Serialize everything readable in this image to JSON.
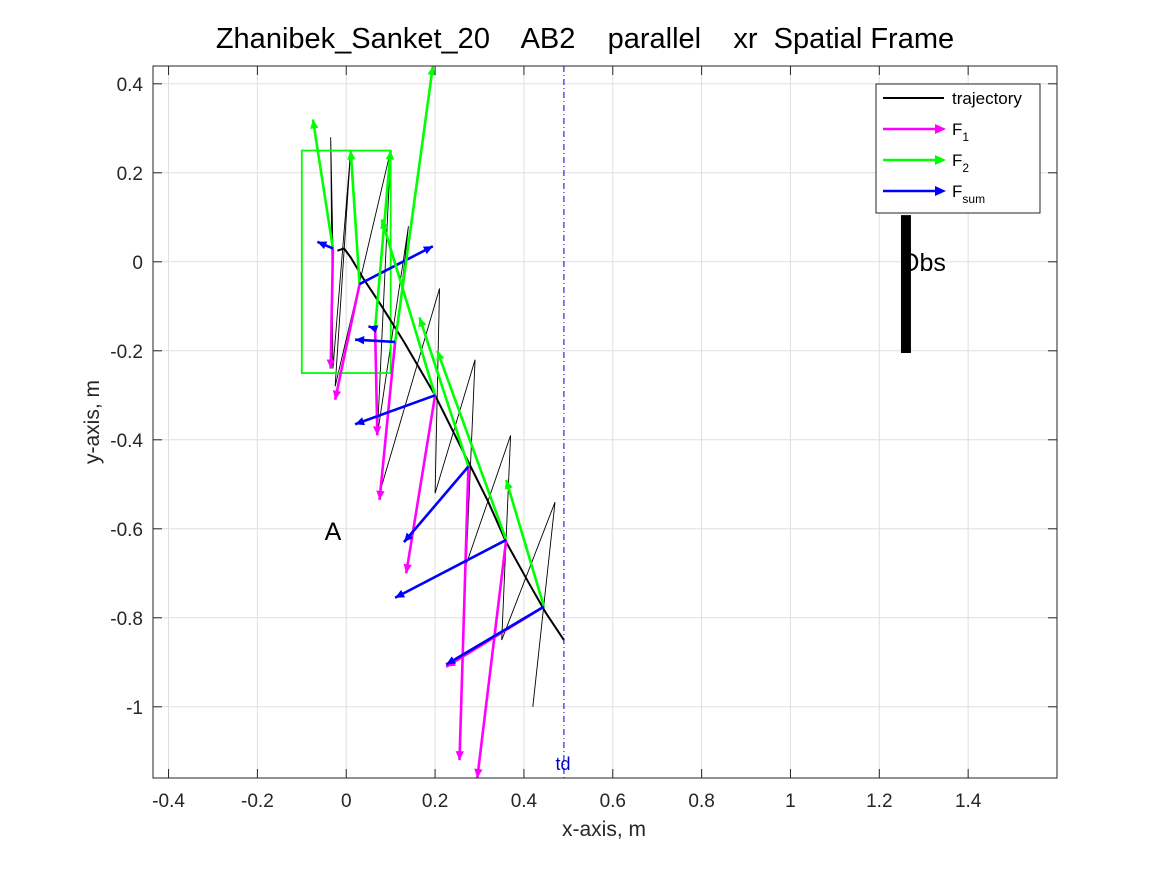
{
  "chart_data": {
    "type": "line",
    "title": "Zhanibek_Sanket_20    AB2    parallel    xr  Spatial Frame",
    "xlabel": "x-axis, m",
    "ylabel": "y-axis, m",
    "xlim": [
      -0.435,
      1.6
    ],
    "ylim": [
      -1.16,
      0.44
    ],
    "x_ticks": [
      -0.4,
      -0.2,
      0,
      0.2,
      0.4,
      0.6,
      0.8,
      1,
      1.2,
      1.4
    ],
    "x_tick_labels": [
      "-0.4",
      "-0.2",
      "0",
      "0.2",
      "0.4",
      "0.6",
      "0.8",
      "1",
      "1.2",
      "1.4"
    ],
    "y_ticks": [
      0.4,
      0.2,
      0,
      -0.2,
      -0.4,
      -0.6,
      -0.8,
      -1
    ],
    "y_tick_labels": [
      "0.4",
      "0.2",
      "0",
      "-0.2",
      "-0.4",
      "-0.6",
      "-0.8",
      "-1"
    ],
    "grid": true,
    "legend_position": "top-right",
    "legend": [
      {
        "key": "trajectory",
        "label": "trajectory",
        "sub": "",
        "color": "#000000"
      },
      {
        "key": "f1",
        "label": "F",
        "sub": "1",
        "color": "#ff00ff"
      },
      {
        "key": "f2",
        "label": "F",
        "sub": "2",
        "color": "#00ff00"
      },
      {
        "key": "fsum",
        "label": "F",
        "sub": "sum",
        "color": "#0000ff"
      }
    ],
    "trajectory": {
      "x": [
        -0.02,
        -0.005,
        0.01,
        0.04,
        0.08,
        0.13,
        0.2,
        0.24,
        0.28,
        0.32,
        0.36,
        0.41,
        0.45,
        0.49
      ],
      "y": [
        0.025,
        0.03,
        0.01,
        -0.04,
        -0.1,
        -0.18,
        -0.3,
        -0.38,
        -0.46,
        -0.54,
        -0.63,
        -0.72,
        -0.79,
        -0.85
      ],
      "color": "#000000"
    },
    "vectors": [
      {
        "origin": [
          -0.03,
          0.03
        ],
        "f1": [
          -0.035,
          -0.24
        ],
        "f2": [
          -0.075,
          0.32
        ],
        "sum": [
          -0.065,
          0.045
        ]
      },
      {
        "origin": [
          0.03,
          -0.05
        ],
        "f1": [
          -0.025,
          -0.31
        ],
        "f2": [
          0.01,
          0.25
        ],
        "sum": [
          0.195,
          0.035
        ]
      },
      {
        "origin": [
          0.065,
          -0.15
        ],
        "f1": [
          0.07,
          -0.39
        ],
        "f2": [
          0.1,
          0.25
        ],
        "sum": [
          0.05,
          -0.145
        ]
      },
      {
        "origin": [
          0.11,
          -0.18
        ],
        "f1": [
          0.075,
          -0.535
        ],
        "f2": [
          0.195,
          0.44
        ],
        "sum": [
          0.02,
          -0.175
        ]
      },
      {
        "origin": [
          0.2,
          -0.3
        ],
        "f1": [
          0.135,
          -0.7
        ],
        "f2": [
          0.08,
          0.095
        ],
        "sum": [
          0.02,
          -0.365
        ]
      },
      {
        "origin": [
          0.275,
          -0.46
        ],
        "f1": [
          0.255,
          -1.12
        ],
        "f2": [
          0.165,
          -0.125
        ],
        "sum": [
          0.13,
          -0.63
        ]
      },
      {
        "origin": [
          0.36,
          -0.625
        ],
        "f1": [
          0.295,
          -1.16
        ],
        "f2": [
          0.205,
          -0.2
        ],
        "sum": [
          0.11,
          -0.755
        ]
      },
      {
        "origin": [
          0.445,
          -0.775
        ],
        "f1": [
          0.225,
          -0.91
        ],
        "f2": [
          0.36,
          -0.49
        ],
        "sum": [
          0.225,
          -0.905
        ]
      }
    ],
    "force_polygon": [
      [
        -0.03,
        0.03
      ],
      [
        -0.035,
        0.28
      ],
      [
        -0.03,
        -0.24
      ],
      [
        0.01,
        0.25
      ],
      [
        -0.025,
        -0.28
      ],
      [
        0.1,
        0.25
      ],
      [
        0.07,
        -0.39
      ],
      [
        0.14,
        0.08
      ],
      [
        0.075,
        -0.52
      ],
      [
        0.21,
        -0.06
      ],
      [
        0.2,
        -0.52
      ],
      [
        0.29,
        -0.22
      ],
      [
        0.27,
        -0.68
      ],
      [
        0.37,
        -0.39
      ],
      [
        0.35,
        -0.85
      ],
      [
        0.47,
        -0.54
      ],
      [
        0.42,
        -1.0
      ]
    ],
    "box": {
      "x": [
        -0.1,
        0.1
      ],
      "y": [
        -0.25,
        0.25
      ],
      "color": "#00ff00"
    },
    "obstacle": {
      "x": 1.26,
      "y": [
        -0.205,
        0.105
      ],
      "label": "Obs"
    },
    "td_line": {
      "x": 0.49,
      "label": "td",
      "color": "#0000cc"
    },
    "point_A": {
      "x": -0.03,
      "y": -0.605,
      "label": "A"
    }
  }
}
